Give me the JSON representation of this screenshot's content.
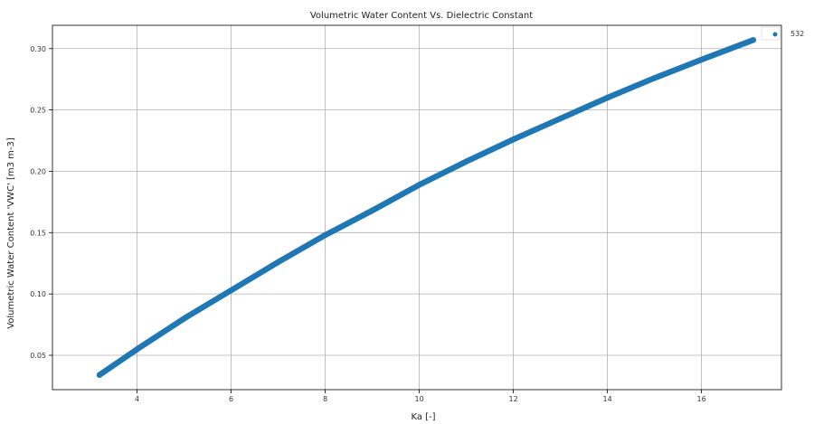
{
  "chart_data": {
    "type": "scatter",
    "title": "Volumetric Water Content Vs. Dielectric Constant",
    "xlabel": "Ka [-]",
    "ylabel": "Volumetric Water Content 'VWC' [m3 m-3]",
    "xlim": [
      2.2,
      17.7
    ],
    "ylim": [
      0.022,
      0.319
    ],
    "xticks": [
      4,
      6,
      8,
      10,
      12,
      14,
      16
    ],
    "yticks": [
      0.05,
      0.1,
      0.15,
      0.2,
      0.25,
      0.3
    ],
    "ytick_labels": [
      "0.05",
      "0.10",
      "0.15",
      "0.20",
      "0.25",
      "0.30"
    ],
    "grid": true,
    "legend_position": "top-right",
    "series": [
      {
        "name": "532",
        "color": "#1f77b4",
        "marker": "circle",
        "x": [
          3.2,
          4.0,
          5.0,
          6.0,
          7.0,
          8.0,
          9.0,
          10.0,
          11.0,
          12.0,
          13.0,
          14.0,
          15.0,
          16.0,
          17.1
        ],
        "y": [
          0.034,
          0.055,
          0.08,
          0.103,
          0.126,
          0.148,
          0.168,
          0.189,
          0.208,
          0.226,
          0.243,
          0.26,
          0.276,
          0.291,
          0.307
        ]
      }
    ]
  }
}
